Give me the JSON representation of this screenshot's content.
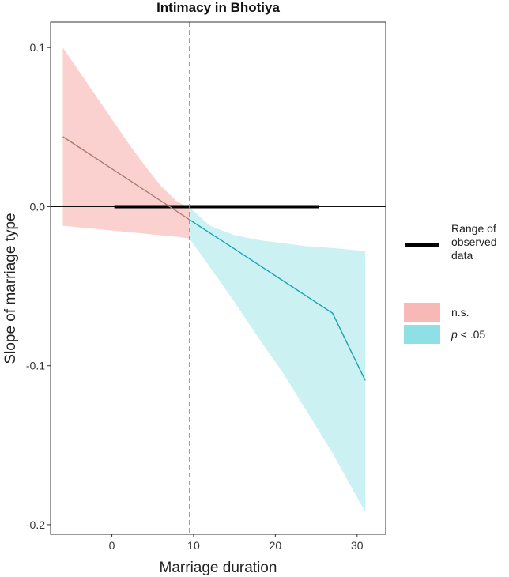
{
  "chart_data": {
    "type": "line",
    "title": "Intimacy in Bhotiya",
    "xlabel": "Marriage duration",
    "ylabel": "Slope of marriage type",
    "xlim": [
      -7.5,
      33.5
    ],
    "ylim": [
      -0.206,
      0.116
    ],
    "x_ticks": [
      0,
      10,
      20,
      30
    ],
    "x_tick_labels": [
      "0",
      "10",
      "20",
      "30"
    ],
    "y_ticks": [
      0.1,
      0.0,
      -0.1,
      -0.2
    ],
    "y_tick_labels": [
      "0.1",
      "0.0",
      "-0.1",
      "-0.2"
    ],
    "grid": false,
    "series": [
      {
        "name": "n.s.",
        "color": "#f8b9b6",
        "line_color": "#b07a70",
        "x": [
          -6,
          -4,
          -2,
          0,
          2,
          4,
          6,
          8,
          9.5
        ],
        "estimate": [
          0.044,
          0.0373,
          0.0306,
          0.0238,
          0.0171,
          0.0103,
          0.0036,
          -0.0031,
          -0.0082
        ],
        "lower": [
          -0.012,
          -0.013,
          -0.014,
          -0.015,
          -0.016,
          -0.017,
          -0.018,
          -0.019,
          -0.02
        ],
        "upper": [
          0.1,
          0.085,
          0.07,
          0.055,
          0.04,
          0.026,
          0.013,
          0.003,
          -0.0005
        ]
      },
      {
        "name": "p < .05",
        "color": "#8ee0e4",
        "line_color": "#1aa5b0",
        "x": [
          9.5,
          12,
          15,
          18,
          21,
          24,
          27,
          31
        ],
        "estimate": [
          -0.0082,
          -0.0166,
          -0.0266,
          -0.0367,
          -0.0468,
          -0.0569,
          -0.067,
          -0.1093
        ],
        "lower": [
          -0.02,
          -0.038,
          -0.06,
          -0.083,
          -0.105,
          -0.13,
          -0.155,
          -0.192
        ],
        "upper": [
          -0.0005,
          -0.012,
          -0.018,
          -0.021,
          -0.023,
          -0.025,
          -0.026,
          -0.028
        ]
      }
    ],
    "jn_point": 9.5,
    "observed_range": [
      0.3,
      25.3
    ],
    "legend_position": "right"
  },
  "legend": {
    "range_label_lines": [
      "Range of",
      "observed",
      "data"
    ],
    "ns_label": "n.s.",
    "p_italic": "p",
    "p_rest": " < .05"
  }
}
